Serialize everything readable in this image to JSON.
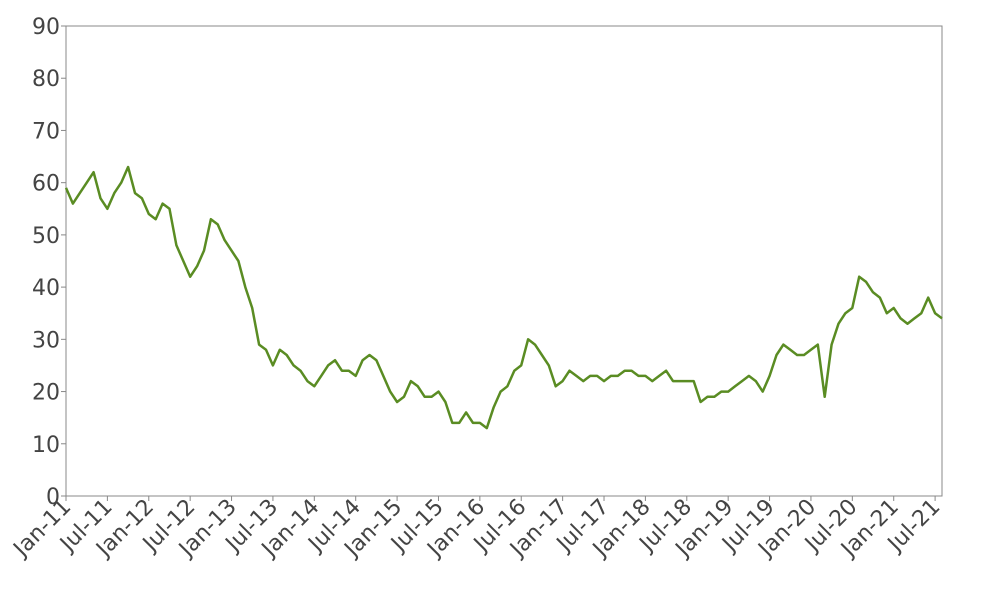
{
  "chart_data": {
    "type": "line",
    "x": [
      "Jan-11",
      "Feb-11",
      "Mar-11",
      "Apr-11",
      "May-11",
      "Jun-11",
      "Jul-11",
      "Aug-11",
      "Sep-11",
      "Oct-11",
      "Nov-11",
      "Dec-11",
      "Jan-12",
      "Feb-12",
      "Mar-12",
      "Apr-12",
      "May-12",
      "Jun-12",
      "Jul-12",
      "Aug-12",
      "Sep-12",
      "Oct-12",
      "Nov-12",
      "Dec-12",
      "Jan-13",
      "Feb-13",
      "Mar-13",
      "Apr-13",
      "May-13",
      "Jun-13",
      "Jul-13",
      "Aug-13",
      "Sep-13",
      "Oct-13",
      "Nov-13",
      "Dec-13",
      "Jan-14",
      "Feb-14",
      "Mar-14",
      "Apr-14",
      "May-14",
      "Jun-14",
      "Jul-14",
      "Aug-14",
      "Sep-14",
      "Oct-14",
      "Nov-14",
      "Dec-14",
      "Jan-15",
      "Feb-15",
      "Mar-15",
      "Apr-15",
      "May-15",
      "Jun-15",
      "Jul-15",
      "Aug-15",
      "Sep-15",
      "Oct-15",
      "Nov-15",
      "Dec-15",
      "Jan-16",
      "Feb-16",
      "Mar-16",
      "Apr-16",
      "May-16",
      "Jun-16",
      "Jul-16",
      "Aug-16",
      "Sep-16",
      "Oct-16",
      "Nov-16",
      "Dec-16",
      "Jan-17",
      "Feb-17",
      "Mar-17",
      "Apr-17",
      "May-17",
      "Jun-17",
      "Jul-17",
      "Aug-17",
      "Sep-17",
      "Oct-17",
      "Nov-17",
      "Dec-17",
      "Jan-18",
      "Feb-18",
      "Mar-18",
      "Apr-18",
      "May-18",
      "Jun-18",
      "Jul-18",
      "Aug-18",
      "Sep-18",
      "Oct-18",
      "Nov-18",
      "Dec-18",
      "Jan-19",
      "Feb-19",
      "Mar-19",
      "Apr-19",
      "May-19",
      "Jun-19",
      "Jul-19",
      "Aug-19",
      "Sep-19",
      "Oct-19",
      "Nov-19",
      "Dec-19",
      "Jan-20",
      "Feb-20",
      "Mar-20",
      "Apr-20",
      "May-20",
      "Jun-20",
      "Jul-20",
      "Aug-20",
      "Sep-20",
      "Oct-20",
      "Nov-20",
      "Dec-20",
      "Jan-21",
      "Feb-21",
      "Mar-21",
      "Apr-21",
      "May-21",
      "Jun-21",
      "Jul-21",
      "Aug-21"
    ],
    "series": [
      {
        "color": "#5a8c23",
        "values": [
          59,
          56,
          58,
          60,
          62,
          57,
          55,
          58,
          60,
          63,
          58,
          57,
          54,
          53,
          56,
          55,
          48,
          45,
          42,
          44,
          47,
          53,
          52,
          49,
          47,
          45,
          40,
          36,
          29,
          28,
          25,
          28,
          27,
          25,
          24,
          22,
          21,
          23,
          25,
          26,
          24,
          24,
          23,
          26,
          27,
          26,
          23,
          20,
          18,
          19,
          22,
          21,
          19,
          19,
          20,
          18,
          14,
          14,
          16,
          14,
          14,
          13,
          17,
          20,
          21,
          24,
          25,
          30,
          29,
          27,
          25,
          21,
          22,
          24,
          23,
          22,
          23,
          23,
          22,
          23,
          23,
          24,
          24,
          23,
          23,
          22,
          23,
          24,
          22,
          22,
          22,
          22,
          18,
          19,
          19,
          20,
          20,
          21,
          22,
          23,
          22,
          20,
          23,
          27,
          29,
          28,
          27,
          27,
          28,
          29,
          19,
          29,
          33,
          35,
          36,
          42,
          41,
          39,
          38,
          35,
          36,
          34,
          33,
          34,
          35,
          38,
          35,
          34
        ]
      }
    ],
    "xticks": [
      "Jan-11",
      "Jul-11",
      "Jan-12",
      "Jul-12",
      "Jan-13",
      "Jul-13",
      "Jan-14",
      "Jul-14",
      "Jan-15",
      "Jul-15",
      "Jan-16",
      "Jul-16",
      "Jan-17",
      "Jul-17",
      "Jan-18",
      "Jul-18",
      "Jan-19",
      "Jul-19",
      "Jan-20",
      "Jul-20",
      "Jan-21",
      "Jul-21"
    ],
    "ylim": [
      0,
      90
    ],
    "yticks": [
      0,
      10,
      20,
      30,
      40,
      50,
      60,
      70,
      80,
      90
    ],
    "grid": false
  }
}
